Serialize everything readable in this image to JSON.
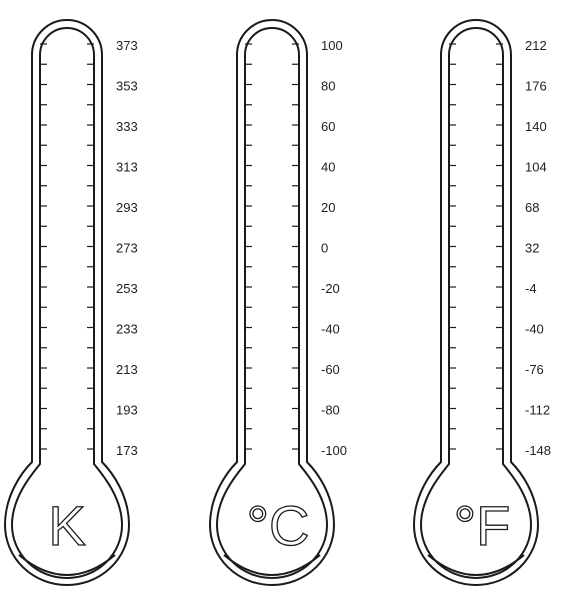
{
  "thermometers": [
    {
      "unit": "K",
      "ticks": [
        "373",
        "353",
        "333",
        "313",
        "293",
        "273",
        "253",
        "233",
        "213",
        "193",
        "173"
      ]
    },
    {
      "unit": "°C",
      "ticks": [
        "100",
        "80",
        "60",
        "40",
        "20",
        "0",
        "-20",
        "-40",
        "-60",
        "-80",
        "-100"
      ]
    },
    {
      "unit": "°F",
      "ticks": [
        "212",
        "176",
        "140",
        "104",
        "68",
        "32",
        "-4",
        "-40",
        "-76",
        "-112",
        "-148"
      ]
    }
  ],
  "colors": {
    "stroke": "#1a1a1a",
    "fill": "#ffffff"
  }
}
